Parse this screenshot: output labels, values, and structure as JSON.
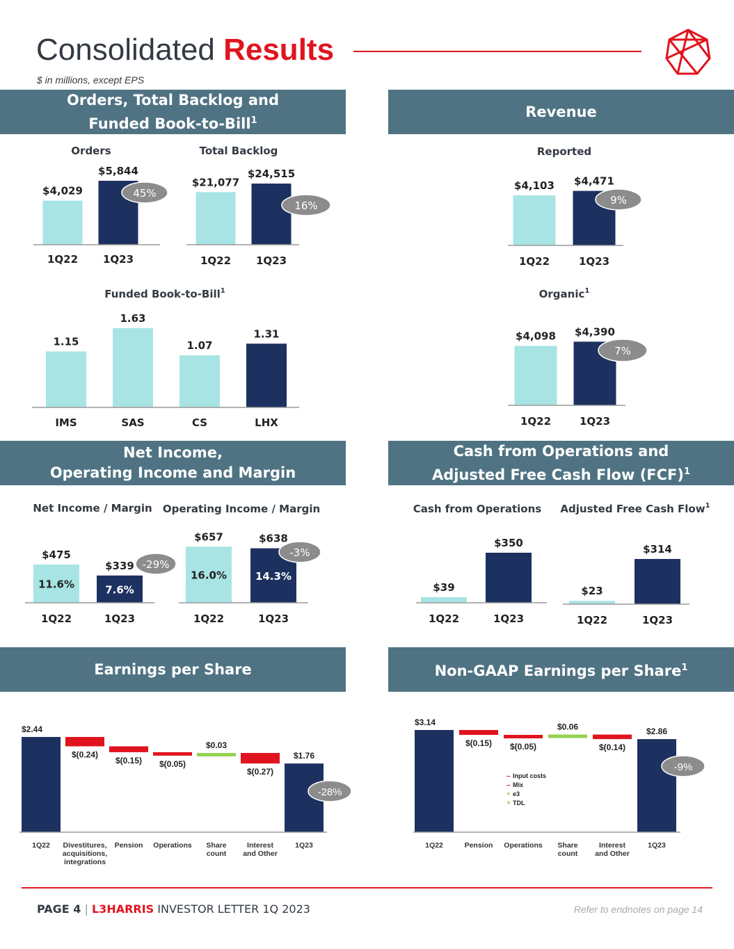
{
  "header": {
    "title_main": "Consolidated",
    "title_accent": "Results",
    "subtitle": "$ in millions, except EPS"
  },
  "footer": {
    "page_label": "PAGE 4",
    "brand": "L3HARRIS",
    "doc_title": "INVESTOR LETTER 1Q 2023",
    "note": "Refer to endnotes on page 14"
  },
  "colors": {
    "light_bar": "#a8e4e4",
    "dark_bar": "#1d3160",
    "banner": "#4f7383",
    "red": "#e0141e",
    "green": "#94d250",
    "badge": "#8c8c8c"
  },
  "sections": {
    "orders": {
      "line1": "Orders, Total Backlog and",
      "line2": "Funded Book-to-Bill",
      "sup": "1"
    },
    "revenue": {
      "line1": "Revenue"
    },
    "net_income": {
      "line1": "Net Income,",
      "line2": "Operating Income and Margin"
    },
    "cash": {
      "line1": "Cash from Operations and",
      "line2": "Adjusted Free Cash Flow (FCF)",
      "sup": "1"
    },
    "eps": {
      "line1": "Earnings per Share"
    },
    "nongaap": {
      "line1": "Non-GAAP Earnings per Share",
      "sup": "1"
    }
  },
  "chart_data": [
    {
      "id": "orders",
      "type": "bar",
      "title": "Orders",
      "categories": [
        "1Q22",
        "1Q23"
      ],
      "values": [
        4029,
        5844
      ],
      "labels": [
        "$4,029",
        "$5,844"
      ],
      "change": "45%",
      "ylim": [
        0,
        6100
      ]
    },
    {
      "id": "backlog",
      "type": "bar",
      "title": "Total Backlog",
      "categories": [
        "1Q22",
        "1Q23"
      ],
      "values": [
        21077,
        24515
      ],
      "labels": [
        "$21,077",
        "$24,515"
      ],
      "change": "16%",
      "ylim": [
        0,
        34000
      ]
    },
    {
      "id": "btb",
      "type": "bar",
      "title": "Funded Book-to-Bill",
      "title_sup": "1",
      "categories": [
        "IMS",
        "SAS",
        "CS",
        "LHX"
      ],
      "values": [
        1.15,
        1.63,
        1.07,
        1.31
      ],
      "labels": [
        "1.15",
        "1.63",
        "1.07",
        "1.31"
      ],
      "ylim": [
        0,
        1.8
      ]
    },
    {
      "id": "rev_reported",
      "type": "bar",
      "title": "Reported",
      "categories": [
        "1Q22",
        "1Q23"
      ],
      "values": [
        4103,
        4471
      ],
      "labels": [
        "$4,103",
        "$4,471"
      ],
      "change": "9%",
      "ylim": [
        0,
        6100
      ]
    },
    {
      "id": "rev_organic",
      "type": "bar",
      "title": "Organic",
      "title_sup": "1",
      "categories": [
        "1Q22",
        "1Q23"
      ],
      "values": [
        4098,
        4390
      ],
      "labels": [
        "$4,098",
        "$4,390"
      ],
      "change": "7%",
      "ylim": [
        0,
        4650
      ]
    },
    {
      "id": "net_income",
      "type": "bar",
      "title": "Net Income / Margin",
      "categories": [
        "1Q22",
        "1Q23"
      ],
      "values": [
        475,
        339
      ],
      "labels": [
        "$475",
        "$339"
      ],
      "margins": [
        "11.6%",
        "7.6%"
      ],
      "change": "-29%",
      "ylim": [
        0,
        700
      ]
    },
    {
      "id": "op_income",
      "type": "bar",
      "title": "Operating Income / Margin",
      "categories": [
        "1Q22",
        "1Q23"
      ],
      "values": [
        657,
        638
      ],
      "labels": [
        "$657",
        "$638"
      ],
      "margins": [
        "16.0%",
        "14.3%"
      ],
      "change": "-3%",
      "ylim": [
        0,
        700
      ]
    },
    {
      "id": "cfo",
      "type": "bar",
      "title": "Cash from Operations",
      "categories": [
        "1Q22",
        "1Q23"
      ],
      "values": [
        39,
        350
      ],
      "labels": [
        "$39",
        "$350"
      ],
      "ylim": [
        0,
        350
      ]
    },
    {
      "id": "fcf",
      "type": "bar",
      "title": "Adjusted Free Cash Flow",
      "title_sup": "1",
      "categories": [
        "1Q22",
        "1Q23"
      ],
      "values": [
        23,
        314
      ],
      "labels": [
        "$23",
        "$314"
      ],
      "ylim": [
        0,
        314
      ]
    },
    {
      "id": "eps",
      "type": "waterfall",
      "title": "Earnings per Share",
      "steps": [
        {
          "category": "1Q22",
          "value": 2.44,
          "kind": "total",
          "label": "$2.44"
        },
        {
          "category": "Divestitures, acquisitions, integrations",
          "value": -0.24,
          "kind": "delta",
          "label": "$(0.24)"
        },
        {
          "category": "Pension",
          "value": -0.15,
          "kind": "delta",
          "label": "$(0.15)"
        },
        {
          "category": "Operations",
          "value": -0.05,
          "kind": "delta",
          "label": "$(0.05)"
        },
        {
          "category": "Share count",
          "value": 0.03,
          "kind": "delta",
          "label": "$0.03"
        },
        {
          "category": "Interest and Other",
          "value": -0.27,
          "kind": "delta",
          "label": "$(0.27)"
        },
        {
          "category": "1Q23",
          "value": 1.76,
          "kind": "total",
          "label": "$1.76"
        }
      ],
      "change": "-28%",
      "ylim": [
        0,
        2.44
      ]
    },
    {
      "id": "nongaap",
      "type": "waterfall",
      "title": "Non-GAAP Earnings per Share",
      "title_sup": "1",
      "steps": [
        {
          "category": "1Q22",
          "value": 3.14,
          "kind": "total",
          "label": "$3.14"
        },
        {
          "category": "Pension",
          "value": -0.15,
          "kind": "delta",
          "label": "$(0.15)"
        },
        {
          "category": "Operations",
          "value": -0.05,
          "kind": "delta",
          "label": "$(0.05)"
        },
        {
          "category": "Share count",
          "value": 0.06,
          "kind": "delta",
          "label": "$0.06"
        },
        {
          "category": "Interest and Other",
          "value": -0.14,
          "kind": "delta",
          "label": "$(0.14)"
        },
        {
          "category": "1Q23",
          "value": 2.86,
          "kind": "total",
          "label": "$2.86"
        }
      ],
      "legend": [
        {
          "sign": "–",
          "label": "Input costs",
          "color": "#e0141e"
        },
        {
          "sign": "–",
          "label": "Mix",
          "color": "#e0141e"
        },
        {
          "sign": "+",
          "label": "e3",
          "color": "#94d250"
        },
        {
          "sign": "+",
          "label": "TDL",
          "color": "#94d250"
        }
      ],
      "change": "-9%",
      "ylim": [
        0,
        3.14
      ]
    }
  ]
}
